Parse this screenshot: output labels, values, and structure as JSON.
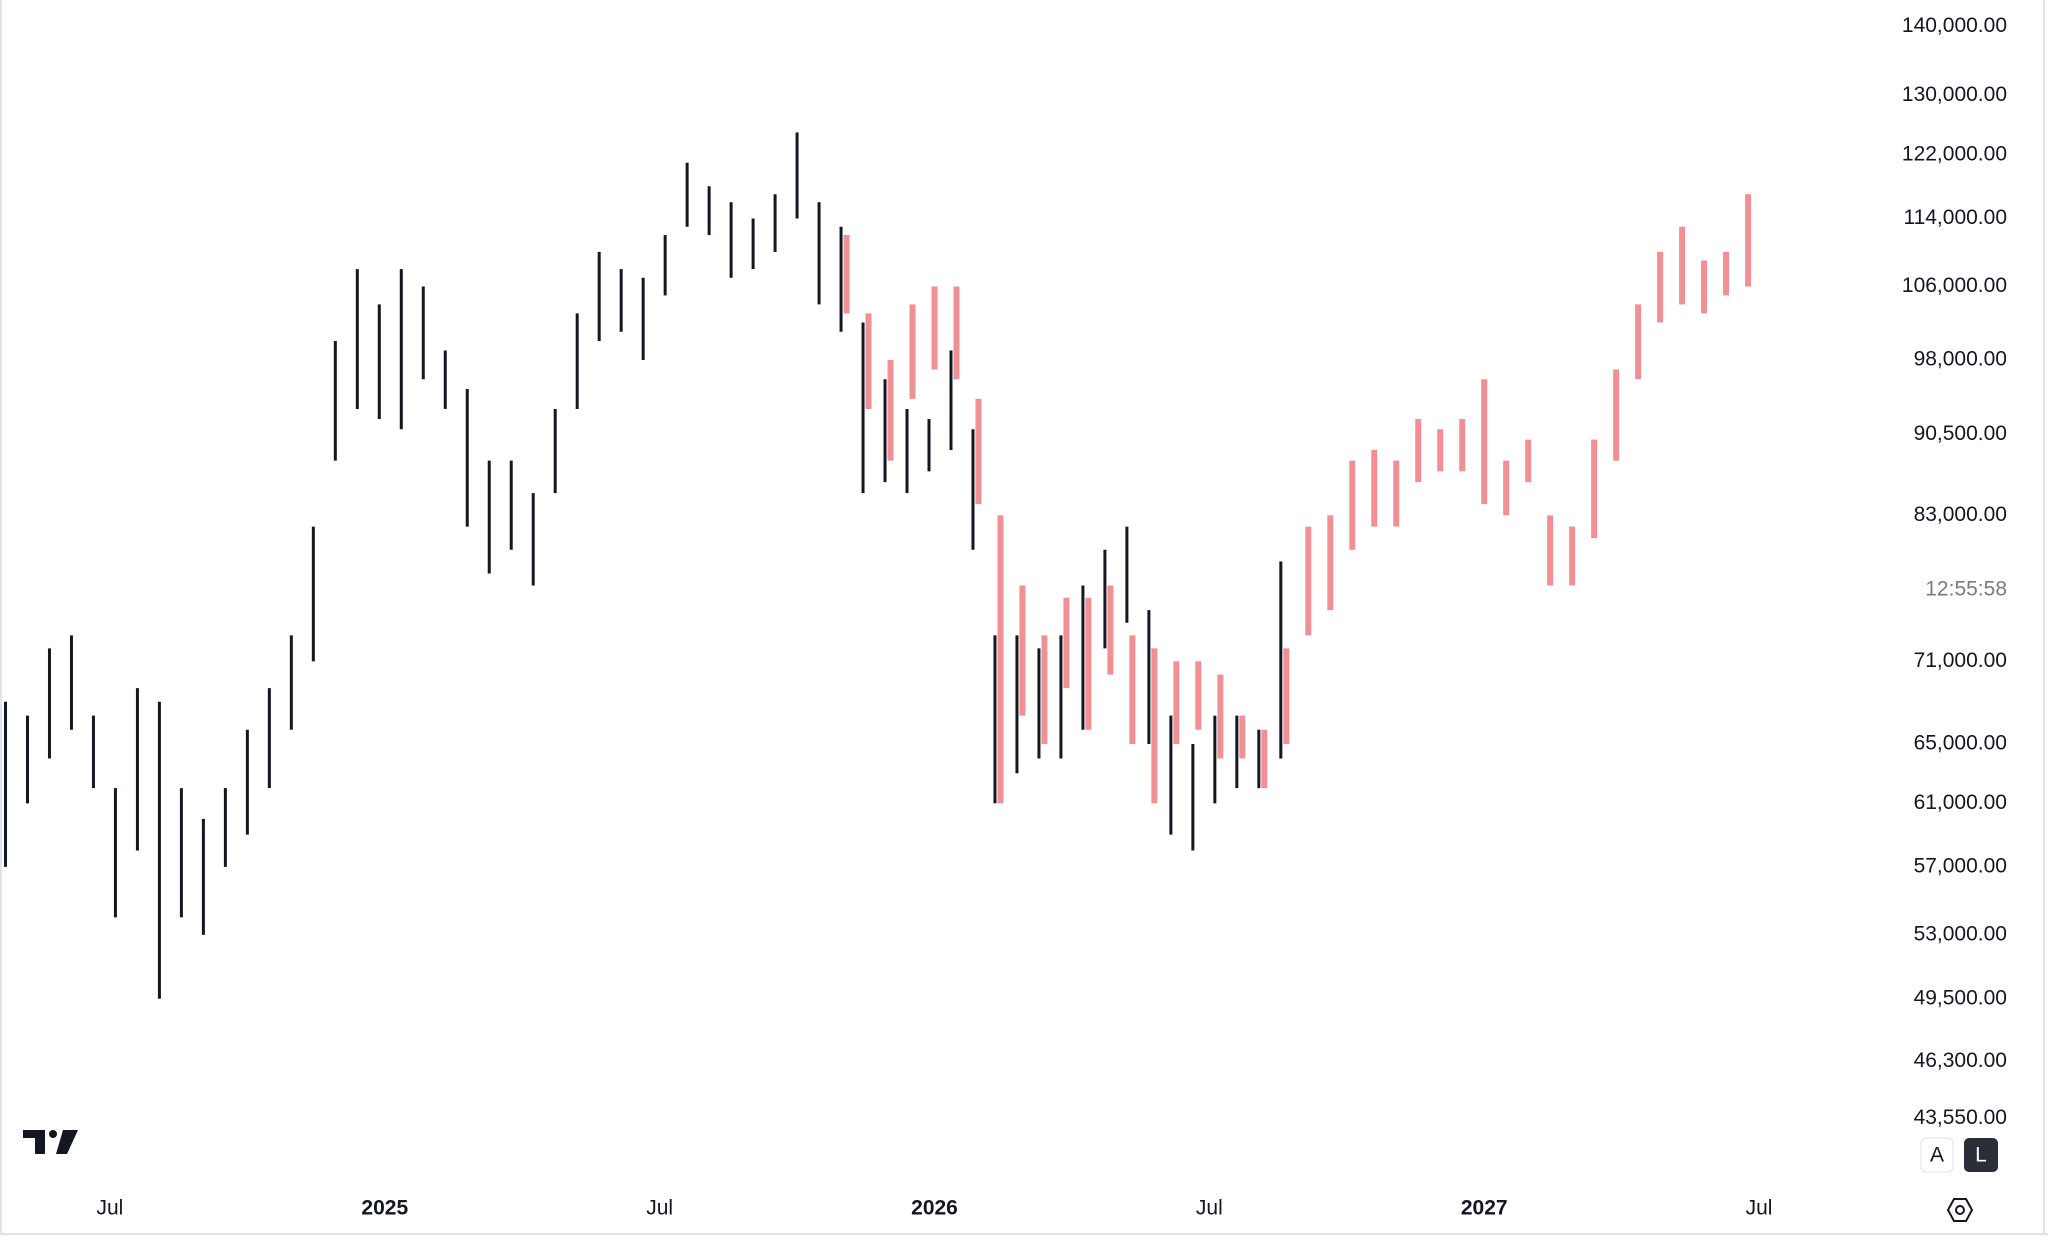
{
  "chart_data": {
    "type": "hilo",
    "log_scale": true,
    "grid": false,
    "xlim": [
      2024.3,
      2027.72
    ],
    "xticks": [
      {
        "value": 2024.5,
        "label": "Jul"
      },
      2025,
      {
        "value": 2025.5,
        "label": "Jul"
      },
      2026,
      {
        "value": 2026.5,
        "label": "Jul"
      },
      2027,
      {
        "value": 2027.5,
        "label": "Jul"
      }
    ],
    "ylim": [
      41000,
      144000
    ],
    "yticks": [
      {
        "value": 140000,
        "label": "140,000.00"
      },
      {
        "value": 130000,
        "label": "130,000.00"
      },
      {
        "value": 122000,
        "label": "122,000.00"
      },
      {
        "value": 114000,
        "label": "114,000.00"
      },
      {
        "value": 106000,
        "label": "106,000.00"
      },
      {
        "value": 98000,
        "label": "98,000.00"
      },
      {
        "value": 90500,
        "label": "90,500.00"
      },
      {
        "value": 83000,
        "label": "83,000.00"
      },
      {
        "value": 71000,
        "label": "71,000.00"
      },
      {
        "value": 65000,
        "label": "65,000.00"
      },
      {
        "value": 61000,
        "label": "61,000.00"
      },
      {
        "value": 57000,
        "label": "57,000.00"
      },
      {
        "value": 53000,
        "label": "53,000.00"
      },
      {
        "value": 49500,
        "label": "49,500.00"
      },
      {
        "value": 46300,
        "label": "46,300.00"
      },
      {
        "value": 43550,
        "label": "43,550.00"
      }
    ],
    "countdown": "12:55:58",
    "scale_buttons": [
      "A",
      "L"
    ],
    "series": [
      {
        "color": "#131722",
        "x": [
          2024.31,
          2024.35,
          2024.39,
          2024.43,
          2024.47,
          2024.51,
          2024.55,
          2024.59,
          2024.63,
          2024.67,
          2024.71,
          2024.75,
          2024.79,
          2024.83,
          2024.87,
          2024.91,
          2024.95,
          2024.99,
          2025.03,
          2025.07,
          2025.11,
          2025.15,
          2025.19,
          2025.23,
          2025.27,
          2025.31,
          2025.35,
          2025.39,
          2025.43,
          2025.47,
          2025.51,
          2025.55,
          2025.59,
          2025.63,
          2025.67,
          2025.71,
          2025.75,
          2025.79,
          2025.83,
          2025.87,
          2025.91,
          2025.95,
          2025.99,
          2026.03,
          2026.07,
          2026.11,
          2026.15,
          2026.19,
          2026.23,
          2026.27,
          2026.31,
          2026.35,
          2026.39,
          2026.43,
          2026.47,
          2026.51,
          2026.55,
          2026.59,
          2026.63
        ],
        "high": [
          68000,
          67000,
          72000,
          73000,
          67000,
          62000,
          69000,
          68000,
          62000,
          60000,
          62000,
          66000,
          69000,
          73000,
          82000,
          100000,
          108000,
          104000,
          108000,
          106000,
          99000,
          95000,
          88000,
          88000,
          85000,
          93000,
          103000,
          110000,
          108000,
          107000,
          112000,
          121000,
          118000,
          116000,
          114000,
          117000,
          125000,
          116000,
          113000,
          102000,
          96000,
          93000,
          92000,
          99000,
          91000,
          73000,
          73000,
          72000,
          73000,
          77000,
          80000,
          82000,
          75000,
          67000,
          65000,
          67000,
          67000,
          66000,
          79000
        ],
        "low": [
          57000,
          61000,
          64000,
          66000,
          62000,
          54000,
          58000,
          49500,
          54000,
          53000,
          57000,
          59000,
          62000,
          66000,
          71000,
          88000,
          93000,
          92000,
          91000,
          96000,
          93000,
          82000,
          78000,
          80000,
          77000,
          85000,
          93000,
          100000,
          101000,
          98000,
          105000,
          113000,
          112000,
          107000,
          108000,
          110000,
          114000,
          104000,
          101000,
          85000,
          86000,
          85000,
          87000,
          89000,
          80000,
          61000,
          63000,
          64000,
          64000,
          66000,
          72000,
          74000,
          65000,
          59000,
          58000,
          61000,
          62000,
          62000,
          64000
        ]
      },
      {
        "color": "#ef7b82",
        "x": [
          2025.84,
          2025.88,
          2025.92,
          2025.96,
          2026.0,
          2026.04,
          2026.08,
          2026.12,
          2026.16,
          2026.2,
          2026.24,
          2026.28,
          2026.32,
          2026.36,
          2026.4,
          2026.44,
          2026.48,
          2026.52,
          2026.56,
          2026.6,
          2026.64,
          2026.68,
          2026.72,
          2026.76,
          2026.8,
          2026.84,
          2026.88,
          2026.92,
          2026.96,
          2027.0,
          2027.04,
          2027.08,
          2027.12,
          2027.16,
          2027.2,
          2027.24,
          2027.28,
          2027.32,
          2027.36,
          2027.4,
          2027.44,
          2027.48
        ],
        "high": [
          112000,
          103000,
          98000,
          104000,
          106000,
          106000,
          94000,
          83000,
          77000,
          73000,
          76000,
          76000,
          77000,
          73000,
          72000,
          71000,
          71000,
          70000,
          67000,
          66000,
          72000,
          82000,
          83000,
          88000,
          89000,
          88000,
          92000,
          91000,
          92000,
          96000,
          88000,
          90000,
          83000,
          82000,
          90000,
          97000,
          104000,
          110000,
          113000,
          109000,
          110000,
          117000
        ],
        "low": [
          103000,
          93000,
          88000,
          94000,
          97000,
          96000,
          84000,
          61000,
          67000,
          65000,
          69000,
          66000,
          70000,
          65000,
          61000,
          65000,
          66000,
          64000,
          64000,
          62000,
          65000,
          73000,
          75000,
          80000,
          82000,
          82000,
          86000,
          87000,
          87000,
          84000,
          83000,
          86000,
          77000,
          77000,
          81000,
          88000,
          96000,
          102000,
          104000,
          103000,
          105000,
          106000
        ]
      }
    ]
  }
}
